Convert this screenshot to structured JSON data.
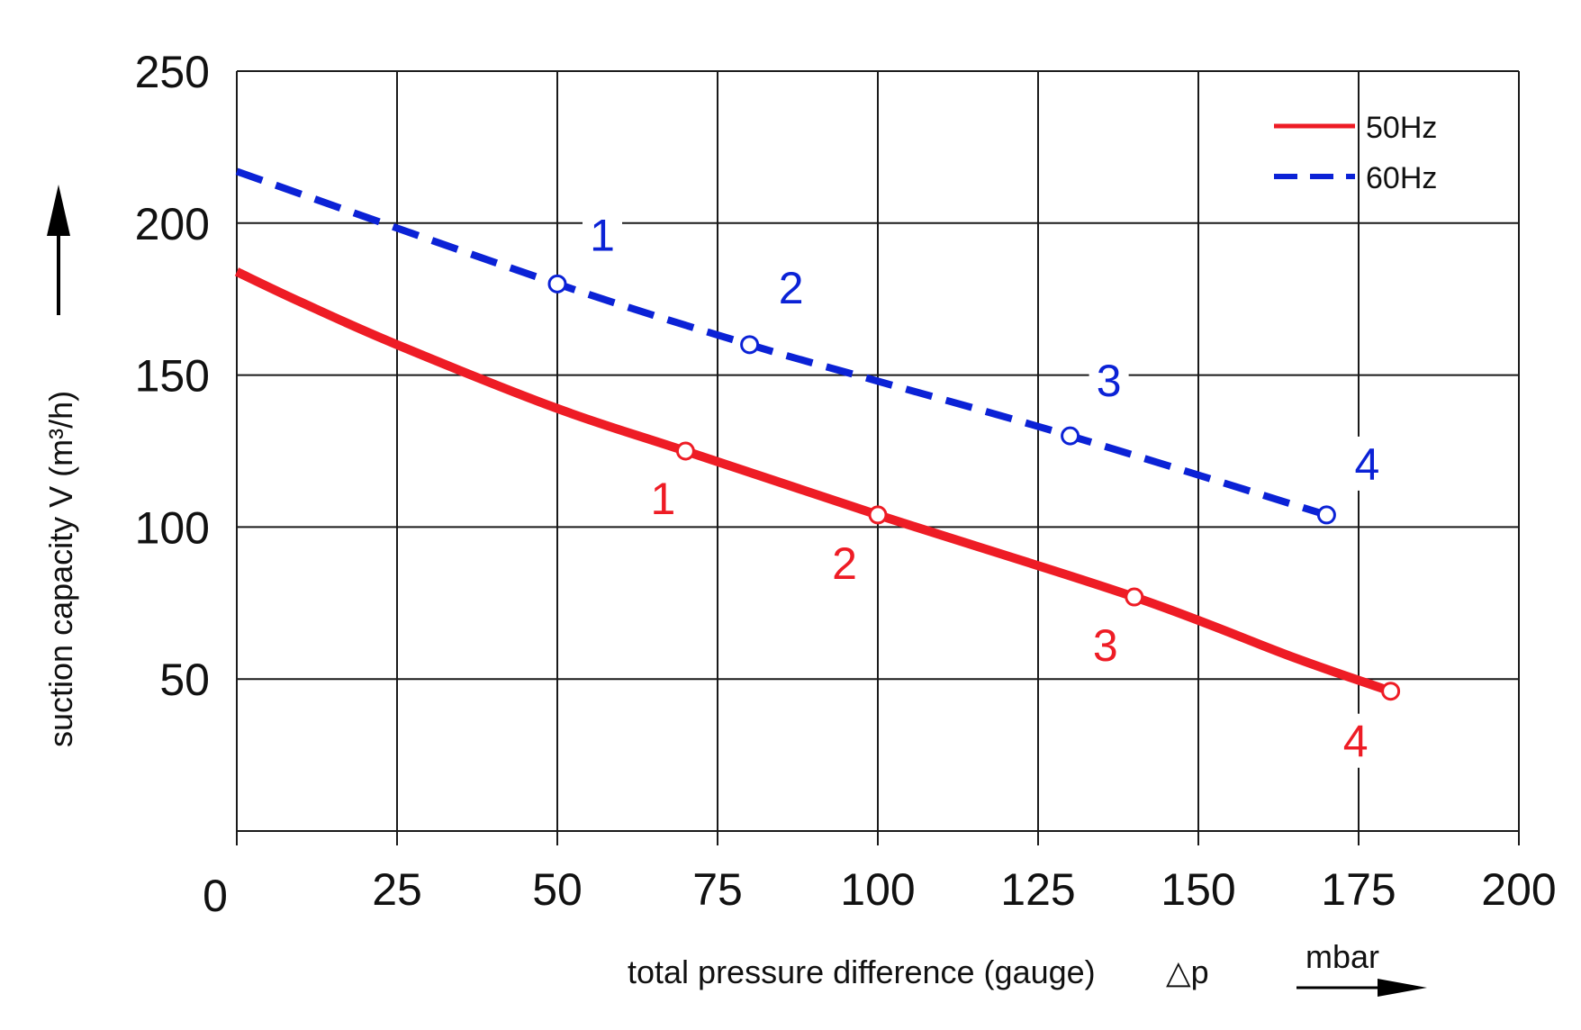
{
  "chart_data": {
    "type": "line",
    "xlabel": "total pressure difference (gauge)",
    "xlabel_symbol": "△p",
    "x_unit": "mbar",
    "ylabel": "suction capacity V (m³/h)",
    "xlim": [
      0,
      200
    ],
    "ylim": [
      0,
      250
    ],
    "x_ticks": [
      "0",
      "25",
      "50",
      "75",
      "100",
      "125",
      "150",
      "175",
      "200"
    ],
    "y_ticks": [
      "50",
      "100",
      "150",
      "200",
      "250"
    ],
    "grid": true,
    "legend_position": "top-right",
    "series": [
      {
        "name": "50Hz",
        "color": "#ee1c25",
        "style": "solid",
        "x": [
          0,
          10,
          25,
          50,
          70,
          100,
          140,
          165,
          180
        ],
        "y": [
          184,
          174,
          160,
          139,
          125,
          104,
          77,
          57,
          46
        ],
        "points": [
          {
            "label": "1",
            "x": 70,
            "y": 125
          },
          {
            "label": "2",
            "x": 100,
            "y": 104
          },
          {
            "label": "3",
            "x": 140,
            "y": 77
          },
          {
            "label": "4",
            "x": 180,
            "y": 46
          }
        ]
      },
      {
        "name": "60Hz",
        "color": "#0b22d6",
        "style": "dashed",
        "x": [
          0,
          50,
          80,
          100,
          130,
          170
        ],
        "y": [
          217,
          180,
          160,
          148,
          130,
          104
        ],
        "points": [
          {
            "label": "1",
            "x": 50,
            "y": 180
          },
          {
            "label": "2",
            "x": 80,
            "y": 160
          },
          {
            "label": "3",
            "x": 130,
            "y": 130
          },
          {
            "label": "4",
            "x": 170,
            "y": 104
          }
        ]
      }
    ]
  }
}
